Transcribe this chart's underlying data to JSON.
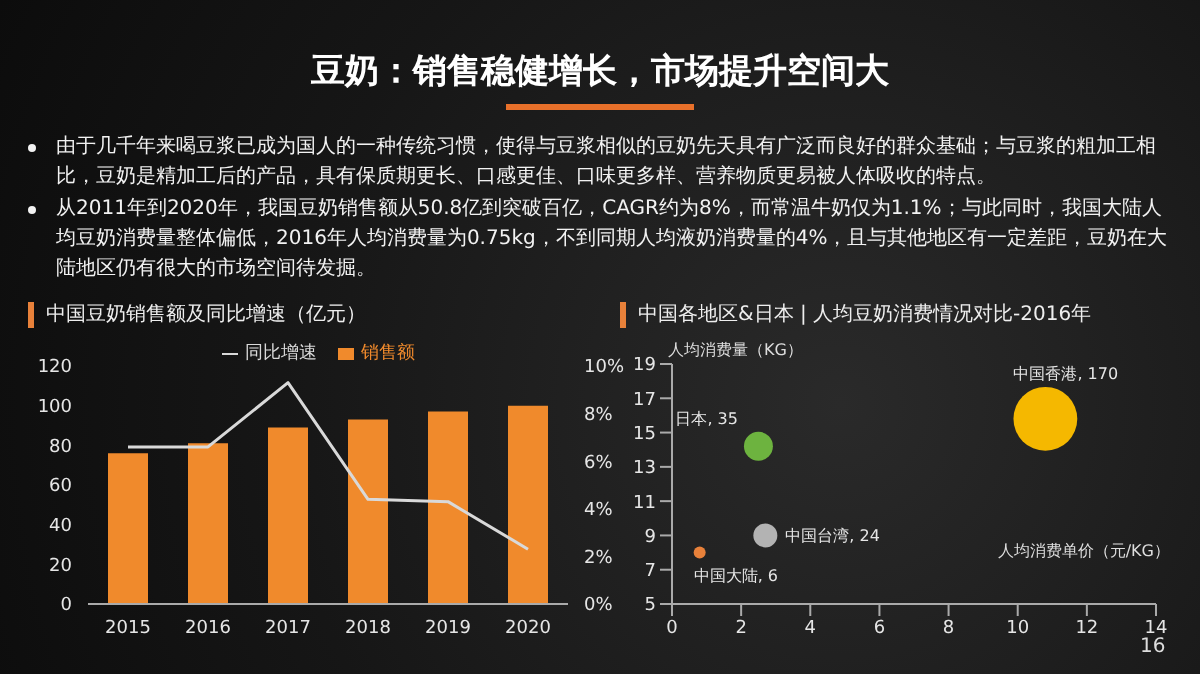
{
  "chart_data": [
    {
      "type": "other",
      "title": "豆奶：销售稳健增长，市场提升空间大",
      "annotations": [
        "由于几千年来喝豆浆已成为国人的一种传统习惯，使得与豆浆相似的豆奶先天具有广泛而良好的群众基础；与豆浆的粗加工相比，豆奶是精加工后的产品，具有保质期更长、口感更佳、口味更多样、营养物质更易被人体吸收的特点。",
        "从2011年到2020年，我国豆奶销售额从50.8亿到突破百亿，CAGR约为8%，而常温牛奶仅为1.1%；与此同时，我国大陆人均豆奶消费量整体偏低，2016年人均消费量为0.75kg，不到同期人均液奶消费量的4%，且与其他地区有一定差距，豆奶在大陆地区仍有很大的市场空间待发掘。",
        "16"
      ]
    },
    {
      "type": "bar",
      "title": "中国豆奶销售额及同比增速（亿元）",
      "categories": [
        "2015",
        "2016",
        "2017",
        "2018",
        "2019",
        "2020"
      ],
      "series": [
        {
          "name": "销售额",
          "type": "bar",
          "color": "#f08a2c",
          "values": [
            76,
            81,
            89,
            93,
            97,
            100
          ]
        },
        {
          "name": "同比增速",
          "type": "line",
          "axis": "y2",
          "color": "#d9d9d9",
          "values": [
            6.6,
            6.6,
            9.3,
            4.4,
            4.3,
            2.3
          ]
        }
      ],
      "ylim": [
        0,
        120
      ],
      "yticks": [
        0,
        20,
        40,
        60,
        80,
        100,
        120
      ],
      "y2lim": [
        0,
        10
      ],
      "y2ticks": [
        {
          "value": 0,
          "label": "0%"
        },
        {
          "value": 2,
          "label": "2%"
        },
        {
          "value": 4,
          "label": "4%"
        },
        {
          "value": 6,
          "label": "6%"
        },
        {
          "value": 8,
          "label": "8%"
        },
        {
          "value": 10,
          "label": "10%"
        }
      ],
      "legend": "top",
      "marker": "none"
    },
    {
      "type": "bubble",
      "title": "中国各地区&日本 | 人均豆奶消费情况对比-2016年",
      "xlabel": "人均消费单价（元/KG）",
      "ylabel": "人均消费量（KG）",
      "series": [
        {
          "color": "#6db33f",
          "x": [
            2.5
          ],
          "values": [
            14.2
          ],
          "sizes": [
            35
          ],
          "value_labels": [
            "日本, 35"
          ]
        },
        {
          "color": "#f5b800",
          "x": [
            10.8
          ],
          "values": [
            15.8
          ],
          "sizes": [
            170
          ],
          "value_labels": [
            "中国香港, 170"
          ]
        },
        {
          "color": "#b3b3b3",
          "x": [
            2.7
          ],
          "values": [
            9
          ],
          "sizes": [
            24
          ],
          "value_labels": [
            "中国台湾, 24"
          ]
        },
        {
          "color": "#e8813a",
          "x": [
            0.8
          ],
          "values": [
            8
          ],
          "sizes": [
            6
          ],
          "value_labels": [
            "中国大陆, 6"
          ]
        }
      ],
      "xlim": [
        0,
        14
      ],
      "xticks": [
        0,
        2,
        4,
        6,
        8,
        10,
        12,
        14
      ],
      "ylim": [
        5,
        19
      ],
      "yticks": [
        5,
        7,
        9,
        11,
        13,
        15,
        17,
        19
      ]
    }
  ]
}
